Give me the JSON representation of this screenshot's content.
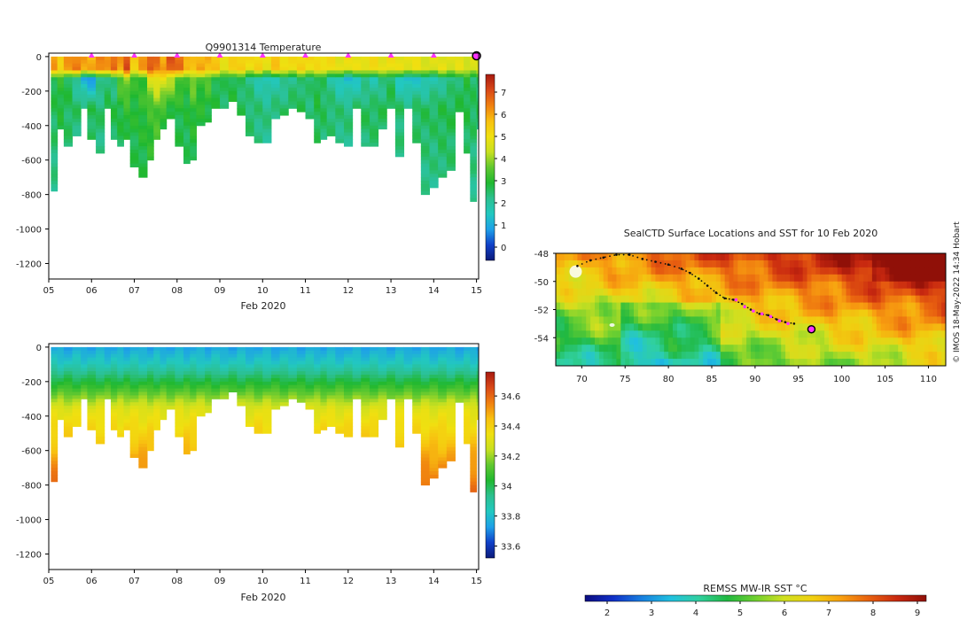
{
  "colors": {
    "ramp_temperature": [
      "#0c1a7a",
      "#1040c8",
      "#1ea0e8",
      "#22c8c0",
      "#2cc090",
      "#20b830",
      "#60c830",
      "#c8e020",
      "#f0e010",
      "#f8c010",
      "#f08010",
      "#d84818",
      "#a81a10"
    ],
    "ramp_salinity": [
      "#0c1a7a",
      "#1040c8",
      "#1ea0e8",
      "#22c8c0",
      "#2cc090",
      "#20b830",
      "#60c830",
      "#c8e020",
      "#f0e010",
      "#f8c010",
      "#f08010",
      "#d84818",
      "#a81a10"
    ],
    "ramp_sst": [
      "#0c0c80",
      "#1030c8",
      "#1880e0",
      "#20c0e0",
      "#30d0a0",
      "#20b840",
      "#70d030",
      "#d0e020",
      "#f0d010",
      "#f8a010",
      "#e86010",
      "#c82810",
      "#901008"
    ],
    "marker": "#ff33ff",
    "track": "#111111"
  },
  "footer": {
    "credit": "© IMOS 18-May-2022 14:34 Hobart"
  },
  "chart_data": [
    {
      "id": "temperature-section",
      "type": "heatmap",
      "title": "Q9901314  Temperature",
      "xlabel": "Feb 2020",
      "ylabel": "",
      "x_tick_labels": [
        "05",
        "06",
        "07",
        "08",
        "09",
        "10",
        "11",
        "12",
        "13",
        "14",
        "15"
      ],
      "xlim": [
        5,
        15.05
      ],
      "y_ticks": [
        0,
        -200,
        -400,
        -600,
        -800,
        -1000,
        -1200
      ],
      "ylim": [
        -1290,
        20
      ],
      "profile_days": [
        5.05,
        5.2,
        5.35,
        5.55,
        5.75,
        5.9,
        6.1,
        6.3,
        6.45,
        6.6,
        6.75,
        6.9,
        7.1,
        7.3,
        7.45,
        7.6,
        7.75,
        7.95,
        8.15,
        8.3,
        8.45,
        8.65,
        8.8,
        9.0,
        9.2,
        9.4,
        9.6,
        9.8,
        10.0,
        10.2,
        10.4,
        10.6,
        10.8,
        11.0,
        11.2,
        11.35,
        11.5,
        11.7,
        11.9,
        12.1,
        12.3,
        12.5,
        12.7,
        12.9,
        13.1,
        13.3,
        13.5,
        13.7,
        13.9,
        14.1,
        14.3,
        14.5,
        14.7,
        14.85,
        15.0
      ],
      "profile_max_depth": [
        780,
        420,
        520,
        460,
        300,
        480,
        560,
        290,
        480,
        520,
        470,
        640,
        700,
        600,
        480,
        420,
        360,
        520,
        610,
        590,
        400,
        380,
        300,
        290,
        260,
        330,
        450,
        500,
        500,
        350,
        330,
        300,
        320,
        360,
        500,
        480,
        460,
        500,
        520,
        300,
        510,
        510,
        420,
        300,
        580,
        300,
        500,
        800,
        760,
        700,
        650,
        320,
        560,
        840,
        420
      ],
      "profile_surface_temp": [
        6,
        5.5,
        6,
        6.5,
        6,
        5.8,
        6.5,
        6,
        6.8,
        6,
        7,
        5.5,
        6,
        7,
        6.5,
        6,
        7,
        6.5,
        6,
        5.5,
        6,
        5.8,
        5.5,
        5,
        5.2,
        5.5,
        5,
        5.2,
        5,
        5.5,
        5.2,
        5,
        5.3,
        5.2,
        5,
        5.2,
        5,
        4.8,
        5,
        4.8,
        5,
        5,
        4.9,
        5,
        4.8,
        4.9,
        4.8,
        4.7,
        4.6,
        4.8,
        4.7,
        4.7,
        4.6,
        4.5,
        4.6
      ],
      "profile_mid_temp": [
        2.8,
        3,
        2.7,
        2,
        1,
        0.8,
        2,
        2.5,
        2.2,
        3.5,
        4,
        3,
        3.2,
        4.5,
        5,
        4.8,
        4.2,
        3.5,
        3,
        4,
        3.2,
        3.5,
        2.8,
        2.5,
        2.8,
        2.5,
        2.2,
        1.8,
        1.5,
        1.8,
        2,
        2.2,
        2.5,
        2.3,
        2.8,
        2.5,
        2,
        1.5,
        1.2,
        1.5,
        2,
        1.8,
        2.2,
        2.5,
        1.5,
        1.2,
        1.5,
        1.5,
        1.8,
        2,
        2.2,
        2.5,
        2.8,
        2.5,
        2.5
      ],
      "profile_deep_temp": [
        2.6,
        2.8,
        2.6,
        2.5,
        2.6,
        2.7,
        2.5,
        2.6,
        2.7,
        2.8,
        3,
        2.9,
        3,
        3.2,
        3.4,
        3.1,
        2.9,
        2.8,
        2.8,
        3,
        2.9,
        2.8,
        2.7,
        2.6,
        2.7,
        2.6,
        2.5,
        2.4,
        2.3,
        2.4,
        2.5,
        2.6,
        2.6,
        2.5,
        2.7,
        2.6,
        2.5,
        2.4,
        2.4,
        2.5,
        2.6,
        2.6,
        2.6,
        2.7,
        2.5,
        2.5,
        2.6,
        2.6,
        2.6,
        2.7,
        2.7,
        2.7,
        2.7,
        2.6,
        2.6
      ],
      "marker_days": [
        6,
        7,
        8,
        9,
        10,
        11,
        12,
        13,
        14
      ],
      "current_day": 15,
      "colorbar": {
        "min": -0.6,
        "max": 7.8,
        "ticks": [
          "0",
          "1",
          "2",
          "3",
          "4",
          "5",
          "6",
          "7"
        ]
      }
    },
    {
      "id": "salinity-section",
      "type": "heatmap",
      "title": "",
      "xlabel": "Feb 2020",
      "ylabel": "",
      "x_tick_labels": [
        "05",
        "06",
        "07",
        "08",
        "09",
        "10",
        "11",
        "12",
        "13",
        "14",
        "15"
      ],
      "xlim": [
        5,
        15.05
      ],
      "y_ticks": [
        0,
        -200,
        -400,
        -600,
        -800,
        -1000,
        -1200
      ],
      "ylim": [
        -1290,
        20
      ],
      "surface_salinity": 33.75,
      "deep_salinity": 34.6,
      "colorbar": {
        "min": 33.52,
        "max": 34.76,
        "ticks": [
          "33.6",
          "33.8",
          "34",
          "34.2",
          "34.4",
          "34.6"
        ]
      }
    },
    {
      "id": "sst-map",
      "type": "heatmap",
      "title": "SealCTD Surface Locations and SST for 10 Feb 2020",
      "xlabel": "",
      "ylabel": "",
      "xlim": [
        67,
        112
      ],
      "ylim": [
        -56,
        -48
      ],
      "x_tick_labels": [
        "70",
        "75",
        "80",
        "85",
        "90",
        "95",
        "100",
        "105",
        "110"
      ],
      "y_tick_labels": [
        "-48",
        "-50",
        "-52",
        "-54"
      ],
      "track_lon": [
        69.5,
        71,
        72.5,
        74,
        75.5,
        77,
        78.5,
        80,
        81.5,
        82.5,
        83.5,
        84.5,
        85.5,
        86.5,
        87.5,
        88.5,
        89.5,
        90.5,
        91.5,
        92.5,
        93.5,
        94.5
      ],
      "track_lat": [
        -48.9,
        -48.5,
        -48.3,
        -48.1,
        -48.1,
        -48.4,
        -48.6,
        -48.8,
        -49.1,
        -49.4,
        -49.8,
        -50.3,
        -50.8,
        -51.2,
        -51.3,
        -51.6,
        -52.0,
        -52.3,
        -52.4,
        -52.7,
        -52.9,
        -53.0
      ],
      "recent_track_lon": [
        87.8,
        88.8,
        89.8,
        90.8,
        91.8,
        92.8,
        93.8
      ],
      "recent_track_lat": [
        -51.3,
        -51.8,
        -52.1,
        -52.3,
        -52.5,
        -52.8,
        -53.0
      ],
      "current_lon": 96.5,
      "current_lat": -53.4,
      "colorbar": {
        "label": "REMSS MW-IR SST °C",
        "min": 1.5,
        "max": 9.2,
        "ticks": [
          "2",
          "3",
          "4",
          "5",
          "6",
          "7",
          "8",
          "9"
        ]
      }
    }
  ]
}
